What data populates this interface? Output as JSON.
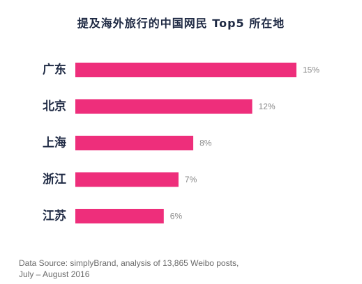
{
  "chart_data": {
    "type": "bar",
    "orientation": "horizontal",
    "title": "提及海外旅行的中国网民 Top5 所在地",
    "categories": [
      "广东",
      "北京",
      "上海",
      "浙江",
      "江苏"
    ],
    "values": [
      15,
      12,
      8,
      7,
      6
    ],
    "value_labels": [
      "15%",
      "12%",
      "8%",
      "7%",
      "6%"
    ],
    "unit": "%",
    "xlim": [
      0,
      15
    ],
    "grid": false,
    "legend": "none",
    "bar_color": "#ee2e7b"
  },
  "source": {
    "line1": "Data Source: simplyBrand, analysis of 13,865 Weibo posts,",
    "line2": "July – August 2016"
  },
  "colors": {
    "bar": "#ee2e7b",
    "category_text": "#1f2a44",
    "value_text": "#8a8a8a",
    "source_text": "#6b6b6b"
  }
}
